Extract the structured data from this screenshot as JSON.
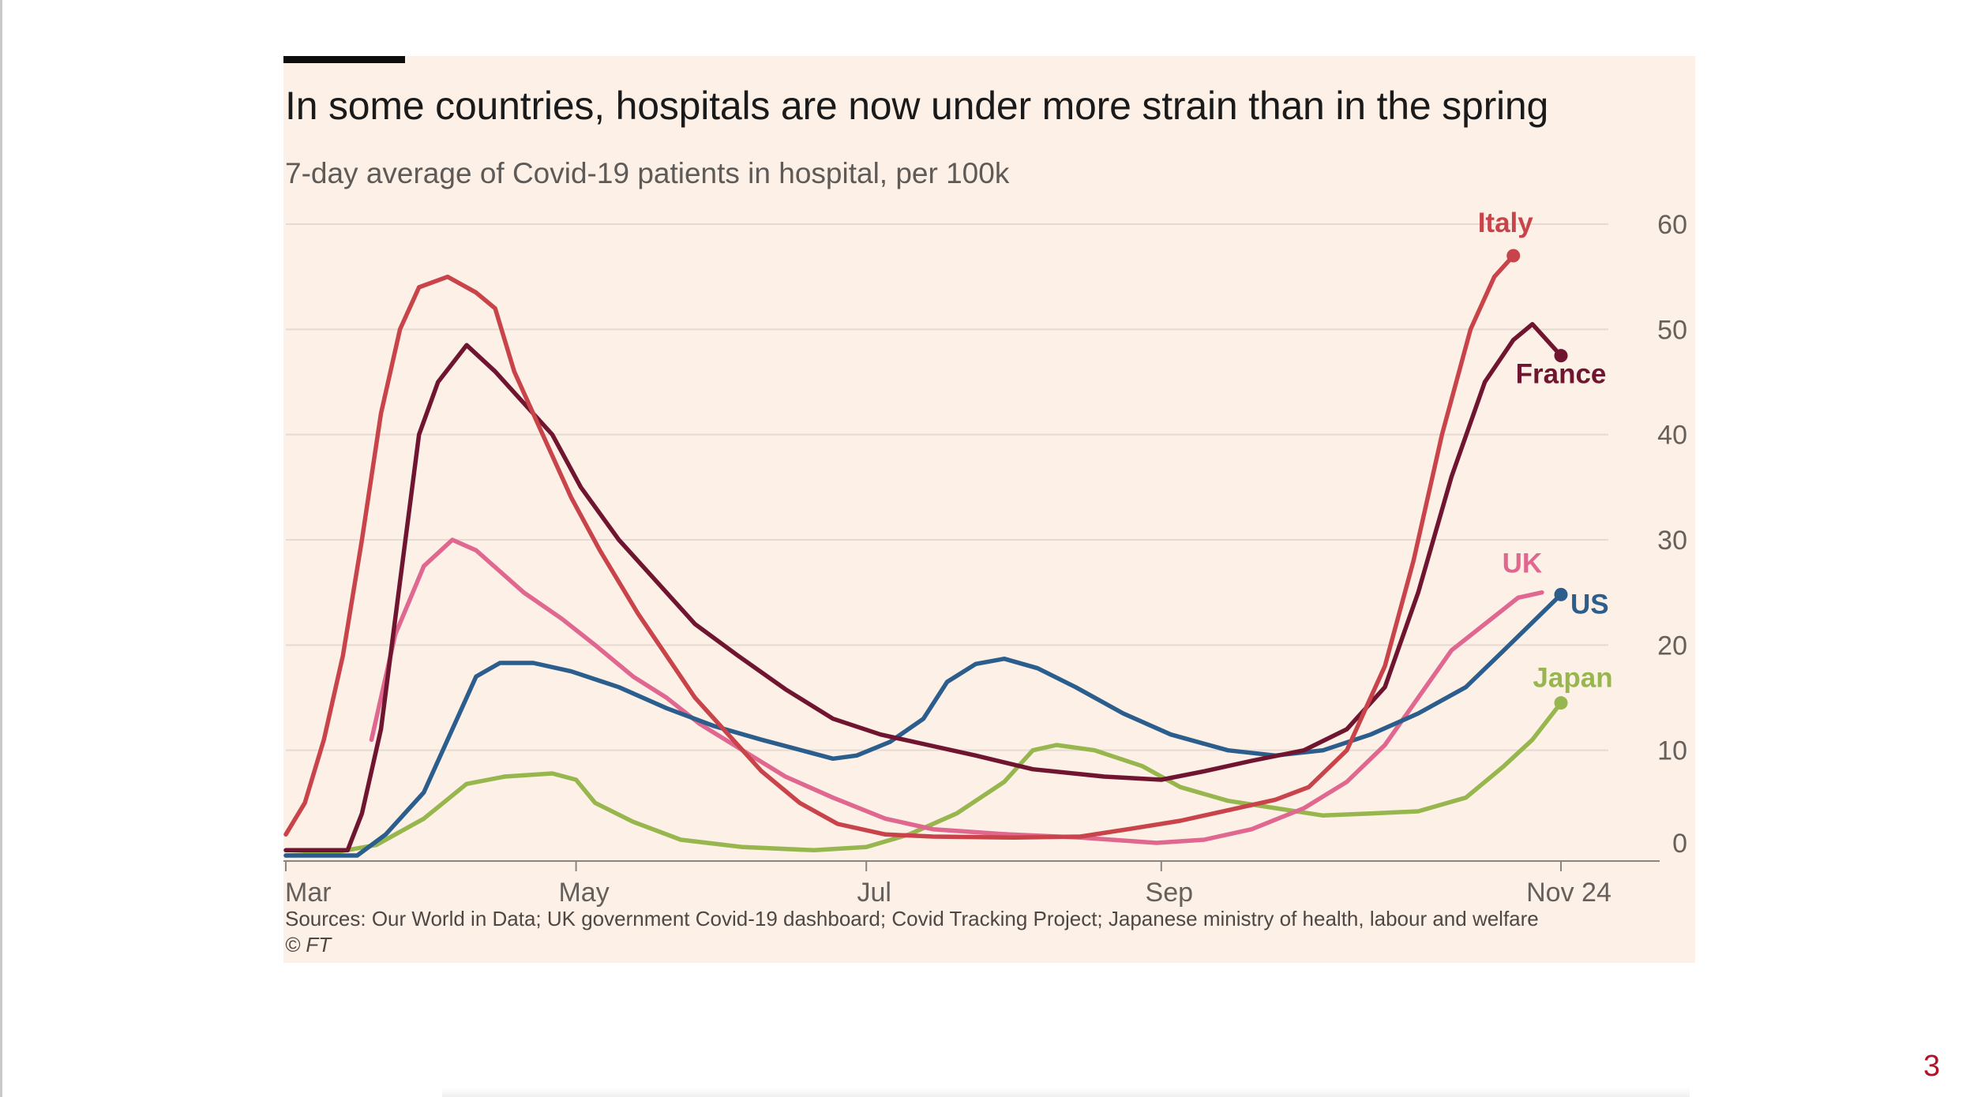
{
  "page_number": "3",
  "chart_data": {
    "type": "line",
    "title": "In some countries, hospitals are now under more strain than in the spring",
    "subtitle": "7-day average of Covid-19 patients in hospital, per 100k",
    "source": "Sources: Our World in Data; UK government Covid-19 dashboard; Covid Tracking Project; Japanese ministry of health, labour and welfare",
    "copyright": "© FT",
    "x_ticks": [
      "Mar",
      "May",
      "Jul",
      "Sep",
      "Nov 24"
    ],
    "x_tick_dates": [
      "2020-03-01",
      "2020-05-01",
      "2020-07-01",
      "2020-09-01",
      "2020-11-24"
    ],
    "y_ticks": [
      "0",
      "10",
      "20",
      "30",
      "40",
      "50",
      "60"
    ],
    "ylim": [
      0,
      60
    ],
    "y_axis_side": "right",
    "grid": true,
    "legend": "direct labels at line ends",
    "series": [
      {
        "name": "Italy",
        "color": "#c8434a",
        "end_marker": true,
        "points": [
          [
            "2020-03-01",
            2
          ],
          [
            "2020-03-05",
            5
          ],
          [
            "2020-03-09",
            11
          ],
          [
            "2020-03-13",
            19
          ],
          [
            "2020-03-17",
            30
          ],
          [
            "2020-03-21",
            42
          ],
          [
            "2020-03-25",
            50
          ],
          [
            "2020-03-29",
            54
          ],
          [
            "2020-04-04",
            55
          ],
          [
            "2020-04-10",
            53.5
          ],
          [
            "2020-04-14",
            52
          ],
          [
            "2020-04-18",
            46
          ],
          [
            "2020-04-24",
            40
          ],
          [
            "2020-04-30",
            34
          ],
          [
            "2020-05-06",
            29
          ],
          [
            "2020-05-14",
            23
          ],
          [
            "2020-05-20",
            19
          ],
          [
            "2020-05-26",
            15
          ],
          [
            "2020-06-01",
            12
          ],
          [
            "2020-06-09",
            8
          ],
          [
            "2020-06-17",
            5
          ],
          [
            "2020-06-25",
            3
          ],
          [
            "2020-07-05",
            2
          ],
          [
            "2020-07-15",
            1.8
          ],
          [
            "2020-08-01",
            1.7
          ],
          [
            "2020-08-15",
            1.8
          ],
          [
            "2020-08-25",
            2.5
          ],
          [
            "2020-09-05",
            3.3
          ],
          [
            "2020-09-15",
            4.3
          ],
          [
            "2020-09-25",
            5.3
          ],
          [
            "2020-10-02",
            6.5
          ],
          [
            "2020-10-10",
            10
          ],
          [
            "2020-10-18",
            18
          ],
          [
            "2020-10-24",
            28
          ],
          [
            "2020-10-30",
            40
          ],
          [
            "2020-11-05",
            50
          ],
          [
            "2020-11-10",
            55
          ],
          [
            "2020-11-14",
            57
          ]
        ]
      },
      {
        "name": "France",
        "color": "#6f1530",
        "end_marker": true,
        "points": [
          [
            "2020-03-01",
            0.5
          ],
          [
            "2020-03-14",
            0.5
          ],
          [
            "2020-03-17",
            4
          ],
          [
            "2020-03-21",
            12
          ],
          [
            "2020-03-25",
            26
          ],
          [
            "2020-03-29",
            40
          ],
          [
            "2020-04-02",
            45
          ],
          [
            "2020-04-08",
            48.5
          ],
          [
            "2020-04-14",
            46
          ],
          [
            "2020-04-20",
            43
          ],
          [
            "2020-04-26",
            40
          ],
          [
            "2020-05-02",
            35
          ],
          [
            "2020-05-10",
            30
          ],
          [
            "2020-05-18",
            26
          ],
          [
            "2020-05-26",
            22
          ],
          [
            "2020-06-04",
            19
          ],
          [
            "2020-06-14",
            15.8
          ],
          [
            "2020-06-24",
            13
          ],
          [
            "2020-07-04",
            11.5
          ],
          [
            "2020-07-14",
            10.5
          ],
          [
            "2020-07-24",
            9.5
          ],
          [
            "2020-08-05",
            8.2
          ],
          [
            "2020-08-20",
            7.5
          ],
          [
            "2020-09-01",
            7.2
          ],
          [
            "2020-09-10",
            8
          ],
          [
            "2020-09-20",
            9
          ],
          [
            "2020-10-01",
            10
          ],
          [
            "2020-10-10",
            12
          ],
          [
            "2020-10-18",
            16
          ],
          [
            "2020-10-25",
            25
          ],
          [
            "2020-11-01",
            36
          ],
          [
            "2020-11-08",
            45
          ],
          [
            "2020-11-14",
            49
          ],
          [
            "2020-11-18",
            50.5
          ],
          [
            "2020-11-24",
            47.5
          ]
        ]
      },
      {
        "name": "UK",
        "color": "#e0678f",
        "end_marker": false,
        "points": [
          [
            "2020-03-19",
            11
          ],
          [
            "2020-03-24",
            21
          ],
          [
            "2020-03-30",
            27.5
          ],
          [
            "2020-04-05",
            30
          ],
          [
            "2020-04-10",
            29
          ],
          [
            "2020-04-15",
            27
          ],
          [
            "2020-04-20",
            25
          ],
          [
            "2020-04-28",
            22.5
          ],
          [
            "2020-05-05",
            20
          ],
          [
            "2020-05-13",
            17
          ],
          [
            "2020-05-20",
            15
          ],
          [
            "2020-05-27",
            12.5
          ],
          [
            "2020-06-05",
            10
          ],
          [
            "2020-06-14",
            7.5
          ],
          [
            "2020-06-24",
            5.5
          ],
          [
            "2020-07-05",
            3.5
          ],
          [
            "2020-07-15",
            2.5
          ],
          [
            "2020-07-31",
            2
          ],
          [
            "2020-08-15",
            1.7
          ],
          [
            "2020-08-31",
            1.2
          ],
          [
            "2020-09-10",
            1.5
          ],
          [
            "2020-09-20",
            2.5
          ],
          [
            "2020-10-01",
            4.5
          ],
          [
            "2020-10-10",
            7
          ],
          [
            "2020-10-18",
            10.5
          ],
          [
            "2020-10-25",
            15
          ],
          [
            "2020-11-01",
            19.5
          ],
          [
            "2020-11-08",
            22
          ],
          [
            "2020-11-15",
            24.5
          ],
          [
            "2020-11-20",
            25
          ]
        ]
      },
      {
        "name": "US",
        "color": "#2b5d8d",
        "end_marker": true,
        "points": [
          [
            "2020-03-01",
            0
          ],
          [
            "2020-03-16",
            0
          ],
          [
            "2020-03-22",
            2
          ],
          [
            "2020-03-30",
            6
          ],
          [
            "2020-04-05",
            12
          ],
          [
            "2020-04-10",
            17
          ],
          [
            "2020-04-15",
            18.3
          ],
          [
            "2020-04-22",
            18.3
          ],
          [
            "2020-04-30",
            17.5
          ],
          [
            "2020-05-10",
            16
          ],
          [
            "2020-05-20",
            14
          ],
          [
            "2020-05-30",
            12.3
          ],
          [
            "2020-06-09",
            11
          ],
          [
            "2020-06-19",
            9.8
          ],
          [
            "2020-06-24",
            9.2
          ],
          [
            "2020-06-29",
            9.5
          ],
          [
            "2020-07-06",
            10.8
          ],
          [
            "2020-07-13",
            13
          ],
          [
            "2020-07-18",
            16.5
          ],
          [
            "2020-07-24",
            18.2
          ],
          [
            "2020-07-30",
            18.7
          ],
          [
            "2020-08-06",
            17.8
          ],
          [
            "2020-08-14",
            16
          ],
          [
            "2020-08-24",
            13.5
          ],
          [
            "2020-09-03",
            11.5
          ],
          [
            "2020-09-15",
            10
          ],
          [
            "2020-09-25",
            9.5
          ],
          [
            "2020-10-05",
            10
          ],
          [
            "2020-10-15",
            11.5
          ],
          [
            "2020-10-25",
            13.5
          ],
          [
            "2020-11-04",
            16
          ],
          [
            "2020-11-12",
            19.5
          ],
          [
            "2020-11-24",
            24.8
          ]
        ]
      },
      {
        "name": "Japan",
        "color": "#97b74e",
        "end_marker": true,
        "points": [
          [
            "2020-03-01",
            0
          ],
          [
            "2020-03-10",
            0.2
          ],
          [
            "2020-03-20",
            1
          ],
          [
            "2020-03-30",
            3.5
          ],
          [
            "2020-04-08",
            6.8
          ],
          [
            "2020-04-16",
            7.5
          ],
          [
            "2020-04-26",
            7.8
          ],
          [
            "2020-05-01",
            7.2
          ],
          [
            "2020-05-05",
            5
          ],
          [
            "2020-05-13",
            3.2
          ],
          [
            "2020-05-23",
            1.5
          ],
          [
            "2020-06-05",
            0.8
          ],
          [
            "2020-06-20",
            0.5
          ],
          [
            "2020-07-01",
            0.8
          ],
          [
            "2020-07-10",
            2
          ],
          [
            "2020-07-20",
            4
          ],
          [
            "2020-07-30",
            7
          ],
          [
            "2020-08-05",
            10
          ],
          [
            "2020-08-10",
            10.5
          ],
          [
            "2020-08-18",
            10
          ],
          [
            "2020-08-28",
            8.5
          ],
          [
            "2020-09-05",
            6.5
          ],
          [
            "2020-09-15",
            5.2
          ],
          [
            "2020-09-25",
            4.5
          ],
          [
            "2020-10-05",
            3.8
          ],
          [
            "2020-10-15",
            4
          ],
          [
            "2020-10-25",
            4.2
          ],
          [
            "2020-11-04",
            5.5
          ],
          [
            "2020-11-12",
            8.5
          ],
          [
            "2020-11-18",
            11
          ],
          [
            "2020-11-24",
            14.5
          ]
        ]
      }
    ]
  }
}
